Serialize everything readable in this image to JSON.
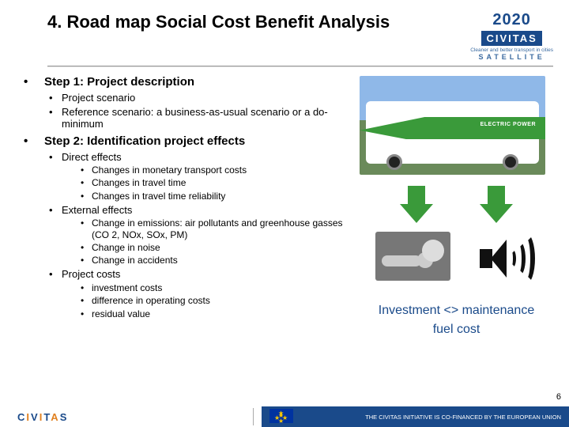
{
  "title": "4. Road map Social Cost Benefit Analysis",
  "logo": {
    "year": "2020",
    "brand": "CIVITAS",
    "tag": "Cleaner and better transport in cities",
    "sat": "SATELLITE"
  },
  "colors": {
    "arrow": "#3a9a3a",
    "caption": "#1a4a8a"
  },
  "step1": {
    "heading": "Step 1: Project description",
    "items": [
      "Project scenario",
      "Reference scenario: a business-as-usual scenario or a do-minimum"
    ]
  },
  "step2": {
    "heading": "Step 2: Identification project effects",
    "direct": {
      "label": "Direct effects",
      "items": [
        "Changes in monetary transport costs",
        "Changes in travel time",
        "Changes in travel time reliability"
      ]
    },
    "external": {
      "label": "External effects",
      "items": [
        "Change in emissions: air pollutants and greenhouse gasses (CO 2, NOx, SOx, PM)",
        "Change in noise",
        "Change in accidents"
      ]
    },
    "project_costs": {
      "label": "Project costs",
      "items": [
        "investment costs",
        "difference in operating costs",
        "residual value"
      ]
    }
  },
  "bus_label": "ELECTRIC POWER",
  "caption_line1": "Investment <> maintenance",
  "caption_line2": "fuel cost",
  "footer": {
    "brand": "CIVITAS",
    "eu_text": "THE CIVITAS INITIATIVE IS CO-FINANCED BY THE EUROPEAN UNION"
  },
  "page": "6"
}
